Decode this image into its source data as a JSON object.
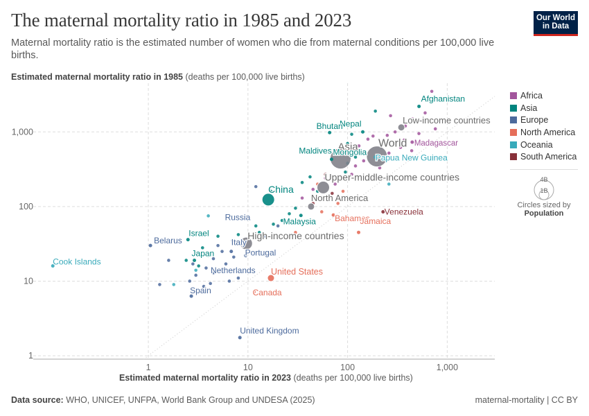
{
  "header": {
    "title": "The maternal mortality ratio in 1985 and 2023",
    "subtitle": "Maternal mortality ratio is the estimated number of women who die from maternal conditions per 100,000 live births.",
    "logo_line1": "Our World",
    "logo_line2": "in Data"
  },
  "axes": {
    "ylabel_bold": "Estimated maternal mortality ratio in 1985",
    "ylabel_rest": " (deaths per 100,000 live births)",
    "xlabel_bold": "Estimated maternal mortality ratio in 2023",
    "xlabel_rest": " (deaths per 100,000 live births)"
  },
  "footer": {
    "source_label": "Data source:",
    "source_text": " WHO, UNICEF, UNFPA, World Bank Group and UNDESA (2025)",
    "right": "maternal-mortality | CC BY"
  },
  "size_legend": {
    "big": "4B",
    "small": "1B",
    "caption": "Circles sized by",
    "caption_bold": "Population"
  },
  "colors": {
    "Africa": "#a2559c",
    "Asia": "#00847e",
    "Europe": "#4c6a9c",
    "North America": "#e56e5a",
    "Oceania": "#38aaba",
    "South America": "#883039",
    "Aggregate": "#7a7a82"
  },
  "chart_data": {
    "type": "scatter",
    "x_scale": "log",
    "y_scale": "log",
    "xlim": [
      0.07,
      3000
    ],
    "ylim": [
      0.9,
      4500
    ],
    "x_ticks": [
      1,
      10,
      100,
      1000
    ],
    "x_tick_labels": [
      "1",
      "10",
      "100",
      "1,000"
    ],
    "y_ticks": [
      1,
      10,
      100,
      1000
    ],
    "y_tick_labels": [
      "1",
      "10",
      "100",
      "1,000"
    ],
    "grid": true,
    "legend": [
      "Africa",
      "Asia",
      "Europe",
      "North America",
      "Oceania",
      "South America"
    ],
    "legend_position": "right",
    "labeled_points": [
      {
        "name": "Afghanistan",
        "region": "Asia",
        "x": 521,
        "y": 2200,
        "size": "small"
      },
      {
        "name": "Nepal",
        "region": "Asia",
        "x": 142,
        "y": 1000,
        "size": "small"
      },
      {
        "name": "Bhutan",
        "region": "Asia",
        "x": 66,
        "y": 980,
        "size": "small"
      },
      {
        "name": "Low-income countries",
        "region": "Aggregate",
        "x": 346,
        "y": 1150,
        "size": "medium"
      },
      {
        "name": "World",
        "region": "Aggregate",
        "x": 197,
        "y": 470,
        "size": "huge"
      },
      {
        "name": "Madagascar",
        "region": "Africa",
        "x": 445,
        "y": 730,
        "size": "small"
      },
      {
        "name": "Maldives",
        "region": "Asia",
        "x": 65,
        "y": 560,
        "size": "small"
      },
      {
        "name": "Asia",
        "region": "Aggregate",
        "x": 85,
        "y": 440,
        "size": "huge"
      },
      {
        "name": "Mongolia",
        "region": "Asia",
        "x": 69,
        "y": 430,
        "size": "small"
      },
      {
        "name": "Papua New Guinea",
        "region": "Oceania",
        "x": 190,
        "y": 460,
        "size": "small"
      },
      {
        "name": "Upper-middle-income countries",
        "region": "Aggregate",
        "x": 57,
        "y": 180,
        "size": "large"
      },
      {
        "name": "China",
        "region": "Asia",
        "x": 16,
        "y": 124,
        "size": "large"
      },
      {
        "name": "North America",
        "region": "Aggregate",
        "x": 43,
        "y": 100,
        "size": "medium"
      },
      {
        "name": "Russia",
        "region": "Europe",
        "x": 9.6,
        "y": 73,
        "size": "small"
      },
      {
        "name": "Venezuela",
        "region": "South America",
        "x": 227,
        "y": 85,
        "size": "small"
      },
      {
        "name": "Malaysia",
        "region": "Asia",
        "x": 34,
        "y": 76,
        "size": "small"
      },
      {
        "name": "Bahamas",
        "region": "North America",
        "x": 72,
        "y": 77,
        "size": "small"
      },
      {
        "name": "Jamaica",
        "region": "North America",
        "x": 129,
        "y": 45,
        "size": "small"
      },
      {
        "name": "Israel",
        "region": "Asia",
        "x": 2.5,
        "y": 36,
        "size": "small"
      },
      {
        "name": "High-income countries",
        "region": "Aggregate",
        "x": 9.6,
        "y": 32,
        "size": "large"
      },
      {
        "name": "Belarus",
        "region": "Europe",
        "x": 1.05,
        "y": 30,
        "size": "small"
      },
      {
        "name": "Italy",
        "region": "Europe",
        "x": 6.8,
        "y": 25,
        "size": "small"
      },
      {
        "name": "Japan",
        "region": "Asia",
        "x": 2.9,
        "y": 19,
        "size": "small"
      },
      {
        "name": "Portugal",
        "region": "Europe",
        "x": 9.5,
        "y": 22,
        "size": "small"
      },
      {
        "name": "Cook Islands",
        "region": "Oceania",
        "x": 0.11,
        "y": 16,
        "size": "small"
      },
      {
        "name": "Netherlands",
        "region": "Europe",
        "x": 4.5,
        "y": 13,
        "size": "small"
      },
      {
        "name": "United States",
        "region": "North America",
        "x": 17,
        "y": 11,
        "size": "medium"
      },
      {
        "name": "Canada",
        "region": "North America",
        "x": 11.5,
        "y": 7.2,
        "size": "small"
      },
      {
        "name": "Spain",
        "region": "Europe",
        "x": 2.7,
        "y": 6.3,
        "size": "small"
      },
      {
        "name": "United Kingdom",
        "region": "Europe",
        "x": 8.3,
        "y": 1.75,
        "size": "small"
      }
    ],
    "unlabeled_points": [
      {
        "region": "Africa",
        "x": 700,
        "y": 3500
      },
      {
        "region": "Africa",
        "x": 600,
        "y": 1800
      },
      {
        "region": "Africa",
        "x": 450,
        "y": 1500
      },
      {
        "region": "Africa",
        "x": 270,
        "y": 1650
      },
      {
        "region": "Africa",
        "x": 380,
        "y": 1200
      },
      {
        "region": "Africa",
        "x": 760,
        "y": 1100
      },
      {
        "region": "Africa",
        "x": 520,
        "y": 950
      },
      {
        "region": "Africa",
        "x": 300,
        "y": 1000
      },
      {
        "region": "Africa",
        "x": 250,
        "y": 900
      },
      {
        "region": "Africa",
        "x": 180,
        "y": 880
      },
      {
        "region": "Africa",
        "x": 160,
        "y": 800
      },
      {
        "region": "Africa",
        "x": 220,
        "y": 700
      },
      {
        "region": "Africa",
        "x": 340,
        "y": 620
      },
      {
        "region": "Africa",
        "x": 440,
        "y": 560
      },
      {
        "region": "Africa",
        "x": 130,
        "y": 650
      },
      {
        "region": "Africa",
        "x": 260,
        "y": 520
      },
      {
        "region": "Africa",
        "x": 145,
        "y": 410
      },
      {
        "region": "Africa",
        "x": 120,
        "y": 350
      },
      {
        "region": "Africa",
        "x": 210,
        "y": 330
      },
      {
        "region": "Africa",
        "x": 90,
        "y": 500
      },
      {
        "region": "Africa",
        "x": 110,
        "y": 270
      },
      {
        "region": "Africa",
        "x": 60,
        "y": 240
      },
      {
        "region": "Africa",
        "x": 75,
        "y": 200
      },
      {
        "region": "Africa",
        "x": 45,
        "y": 170
      },
      {
        "region": "Africa",
        "x": 35,
        "y": 130
      },
      {
        "region": "Africa",
        "x": 370,
        "y": 780
      },
      {
        "region": "Asia",
        "x": 190,
        "y": 1900
      },
      {
        "region": "Asia",
        "x": 110,
        "y": 930
      },
      {
        "region": "Asia",
        "x": 100,
        "y": 700
      },
      {
        "region": "Asia",
        "x": 120,
        "y": 460
      },
      {
        "region": "Asia",
        "x": 95,
        "y": 290
      },
      {
        "region": "Asia",
        "x": 42,
        "y": 250
      },
      {
        "region": "Asia",
        "x": 35,
        "y": 210
      },
      {
        "region": "Asia",
        "x": 50,
        "y": 160
      },
      {
        "region": "Asia",
        "x": 30,
        "y": 95
      },
      {
        "region": "Asia",
        "x": 26,
        "y": 80
      },
      {
        "region": "Asia",
        "x": 22,
        "y": 65
      },
      {
        "region": "Asia",
        "x": 18,
        "y": 58
      },
      {
        "region": "Asia",
        "x": 12,
        "y": 55
      },
      {
        "region": "Asia",
        "x": 8,
        "y": 42
      },
      {
        "region": "Asia",
        "x": 5,
        "y": 40
      },
      {
        "region": "Asia",
        "x": 3.5,
        "y": 28
      },
      {
        "region": "Asia",
        "x": 4,
        "y": 22
      },
      {
        "region": "Asia",
        "x": 2.4,
        "y": 19
      },
      {
        "region": "Asia",
        "x": 3.2,
        "y": 16
      },
      {
        "region": "Asia",
        "x": 13,
        "y": 45
      },
      {
        "region": "Asia",
        "x": 17,
        "y": 160
      },
      {
        "region": "Europe",
        "x": 12,
        "y": 185
      },
      {
        "region": "Europe",
        "x": 20,
        "y": 55
      },
      {
        "region": "Europe",
        "x": 15,
        "y": 40
      },
      {
        "region": "Europe",
        "x": 7,
        "y": 35
      },
      {
        "region": "Europe",
        "x": 5.5,
        "y": 25
      },
      {
        "region": "Europe",
        "x": 4.5,
        "y": 20
      },
      {
        "region": "Europe",
        "x": 6,
        "y": 17
      },
      {
        "region": "Europe",
        "x": 3.8,
        "y": 15
      },
      {
        "region": "Europe",
        "x": 3,
        "y": 12
      },
      {
        "region": "Europe",
        "x": 2.6,
        "y": 10
      },
      {
        "region": "Europe",
        "x": 4.2,
        "y": 9.3
      },
      {
        "region": "Europe",
        "x": 1.6,
        "y": 19
      },
      {
        "region": "Europe",
        "x": 1.3,
        "y": 9
      },
      {
        "region": "Europe",
        "x": 3.6,
        "y": 8.5
      },
      {
        "region": "Europe",
        "x": 6.5,
        "y": 10
      },
      {
        "region": "Europe",
        "x": 8,
        "y": 11
      },
      {
        "region": "Europe",
        "x": 5,
        "y": 30
      },
      {
        "region": "Europe",
        "x": 2.8,
        "y": 17
      },
      {
        "region": "Europe",
        "x": 7.2,
        "y": 21
      },
      {
        "region": "Europe",
        "x": 13,
        "y": 25
      },
      {
        "region": "North America",
        "x": 40,
        "y": 60
      },
      {
        "region": "North America",
        "x": 55,
        "y": 85
      },
      {
        "region": "North America",
        "x": 80,
        "y": 110
      },
      {
        "region": "North America",
        "x": 65,
        "y": 130
      },
      {
        "region": "North America",
        "x": 90,
        "y": 160
      },
      {
        "region": "North America",
        "x": 50,
        "y": 200
      },
      {
        "region": "North America",
        "x": 30,
        "y": 45
      },
      {
        "region": "Oceania",
        "x": 260,
        "y": 200
      },
      {
        "region": "Oceania",
        "x": 4,
        "y": 75
      },
      {
        "region": "Oceania",
        "x": 3,
        "y": 14
      },
      {
        "region": "Oceania",
        "x": 1.8,
        "y": 9
      },
      {
        "region": "Oceania",
        "x": 100,
        "y": 380
      },
      {
        "region": "South America",
        "x": 60,
        "y": 270
      },
      {
        "region": "South America",
        "x": 70,
        "y": 150
      },
      {
        "region": "South America",
        "x": 45,
        "y": 110
      },
      {
        "region": "South America",
        "x": 100,
        "y": 250
      }
    ]
  }
}
